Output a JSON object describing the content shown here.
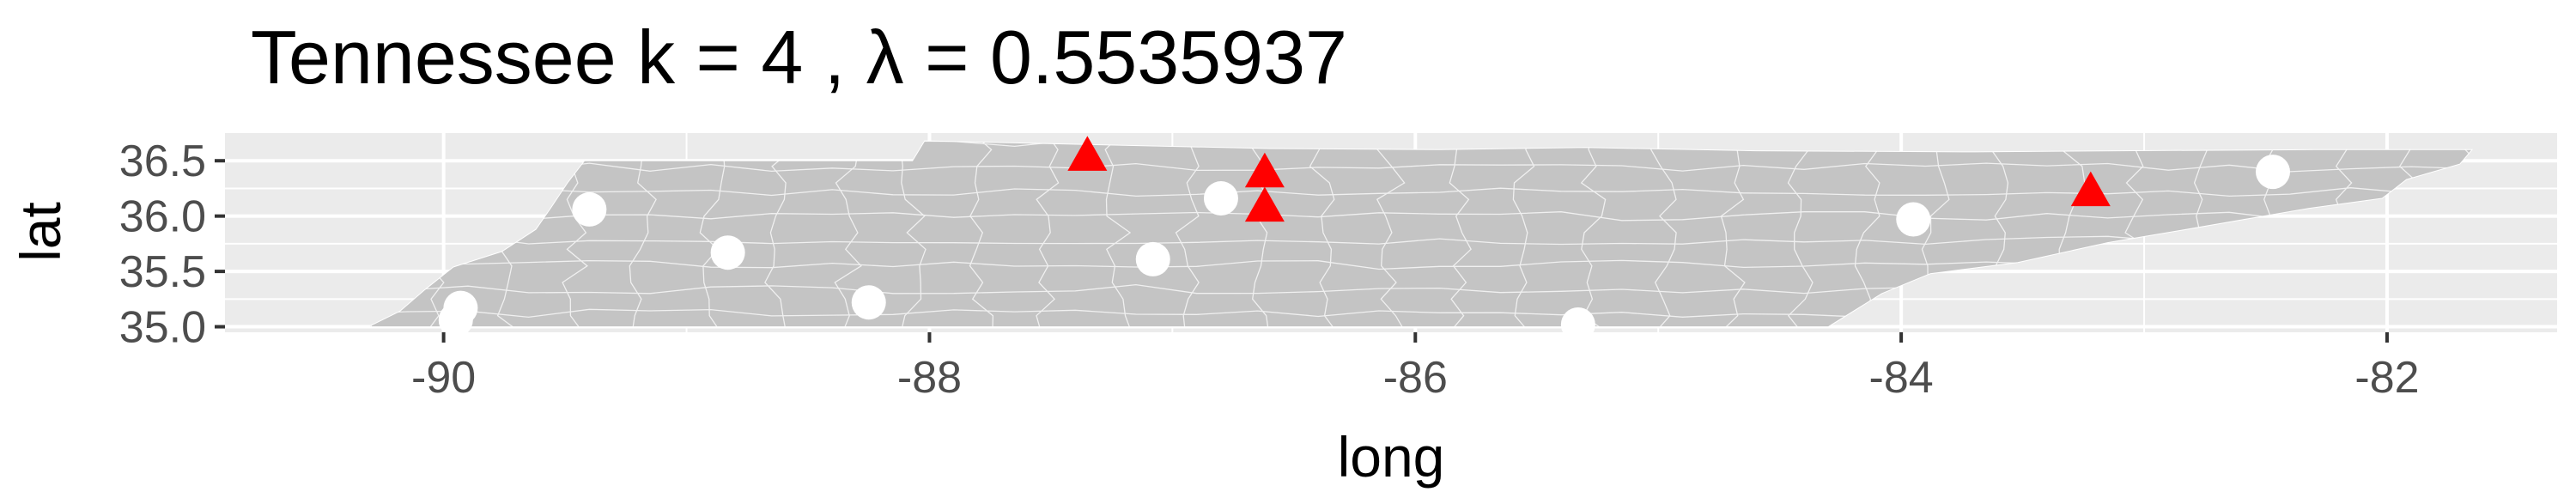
{
  "chart_data": {
    "type": "scatter",
    "title": "Tennessee  k =  4 ,  λ  =  0.5535937",
    "xlabel": "long",
    "ylabel": "lat",
    "xlim": [
      -90.9,
      -81.3
    ],
    "ylim": [
      34.95,
      36.75
    ],
    "x_ticks": [
      -90,
      -88,
      -86,
      -84,
      -82
    ],
    "x_tick_labels": [
      "-90",
      "-88",
      "-86",
      "-84",
      "-82"
    ],
    "y_ticks": [
      35.0,
      35.5,
      36.0,
      36.5
    ],
    "y_tick_labels": [
      "35.0",
      "35.5",
      "36.0",
      "36.5"
    ],
    "grid": true,
    "legend": "none",
    "colors": {
      "panel": "#ebebeb",
      "grid": "#ffffff",
      "region_fill": "#c4c4c4",
      "region_border": "#ffffff",
      "triangle": "#ff0000",
      "circle": "#ffffff"
    },
    "series": [
      {
        "marker": "triangle",
        "color": "#ff0000",
        "points": [
          {
            "x": -87.35,
            "y": 36.53
          },
          {
            "x": -86.62,
            "y": 36.38
          },
          {
            "x": -86.62,
            "y": 36.07
          },
          {
            "x": -83.22,
            "y": 36.21
          }
        ]
      },
      {
        "marker": "circle",
        "color": "#ffffff",
        "points": [
          {
            "x": -89.93,
            "y": 35.17
          },
          {
            "x": -89.95,
            "y": 35.06
          },
          {
            "x": -89.4,
            "y": 36.06
          },
          {
            "x": -88.83,
            "y": 35.67
          },
          {
            "x": -88.25,
            "y": 35.22
          },
          {
            "x": -87.08,
            "y": 35.61
          },
          {
            "x": -86.8,
            "y": 36.16
          },
          {
            "x": -85.33,
            "y": 35.02
          },
          {
            "x": -83.95,
            "y": 35.97
          },
          {
            "x": -82.47,
            "y": 36.4
          }
        ]
      }
    ],
    "state_outline": [
      [
        -90.31,
        35.0
      ],
      [
        -90.18,
        35.14
      ],
      [
        -90.08,
        35.33
      ],
      [
        -89.96,
        35.54
      ],
      [
        -89.76,
        35.68
      ],
      [
        -89.62,
        35.88
      ],
      [
        -89.56,
        36.07
      ],
      [
        -89.49,
        36.3
      ],
      [
        -89.42,
        36.5
      ],
      [
        -88.07,
        36.5
      ],
      [
        -88.02,
        36.68
      ],
      [
        -87.2,
        36.64
      ],
      [
        -86.6,
        36.61
      ],
      [
        -85.9,
        36.6
      ],
      [
        -85.3,
        36.62
      ],
      [
        -84.6,
        36.59
      ],
      [
        -83.7,
        36.58
      ],
      [
        -83.1,
        36.59
      ],
      [
        -82.3,
        36.6
      ],
      [
        -81.65,
        36.6
      ],
      [
        -81.7,
        36.47
      ],
      [
        -81.92,
        36.33
      ],
      [
        -82.02,
        36.16
      ],
      [
        -82.32,
        36.07
      ],
      [
        -82.56,
        35.98
      ],
      [
        -82.85,
        35.87
      ],
      [
        -83.15,
        35.76
      ],
      [
        -83.52,
        35.58
      ],
      [
        -83.88,
        35.48
      ],
      [
        -84.08,
        35.3
      ],
      [
        -84.3,
        35.0
      ],
      [
        -85.6,
        35.0
      ],
      [
        -86.9,
        35.0
      ],
      [
        -88.2,
        35.0
      ],
      [
        -89.4,
        35.0
      ],
      [
        -90.31,
        35.0
      ]
    ]
  }
}
